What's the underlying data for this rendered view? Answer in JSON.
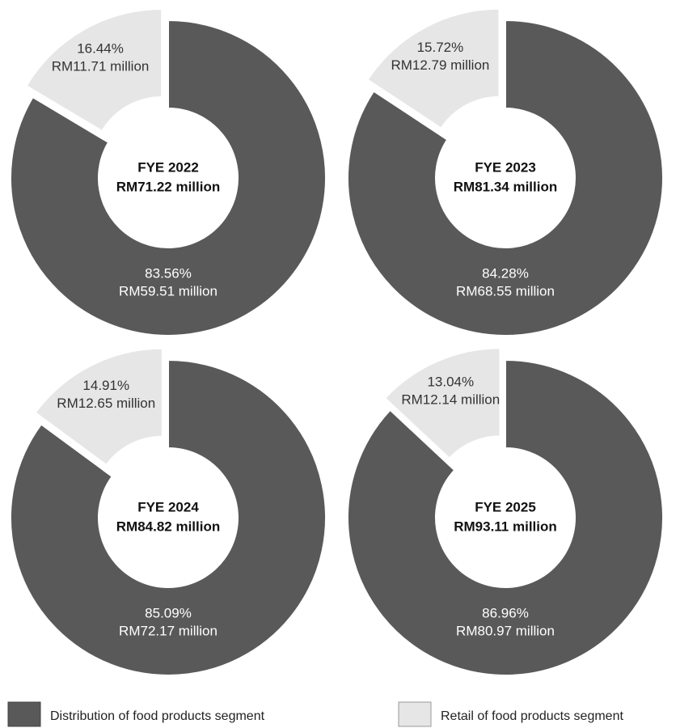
{
  "chart_data": [
    {
      "type": "pie",
      "title": "FYE 2022",
      "subtitle": "RM71.22 million",
      "categories": [
        "Distribution of food products segment",
        "Retail of food products segment"
      ],
      "values": [
        83.56,
        16.44
      ],
      "value_labels": [
        "83.56%",
        "16.44%"
      ],
      "amount_labels": [
        "RM59.51 million",
        "RM11.71 million"
      ],
      "colors": [
        "#595959",
        "#e6e6e6"
      ]
    },
    {
      "type": "pie",
      "title": "FYE 2023",
      "subtitle": "RM81.34 million",
      "categories": [
        "Distribution of food products segment",
        "Retail of food products segment"
      ],
      "values": [
        84.28,
        15.72
      ],
      "value_labels": [
        "84.28%",
        "15.72%"
      ],
      "amount_labels": [
        "RM68.55 million",
        "RM12.79 million"
      ],
      "colors": [
        "#595959",
        "#e6e6e6"
      ]
    },
    {
      "type": "pie",
      "title": "FYE 2024",
      "subtitle": "RM84.82 million",
      "categories": [
        "Distribution of food products segment",
        "Retail of food products segment"
      ],
      "values": [
        85.09,
        14.91
      ],
      "value_labels": [
        "85.09%",
        "14.91%"
      ],
      "amount_labels": [
        "RM72.17 million",
        "RM12.65 million"
      ],
      "colors": [
        "#595959",
        "#e6e6e6"
      ]
    },
    {
      "type": "pie",
      "title": "FYE 2025",
      "subtitle": "RM93.11 million",
      "categories": [
        "Distribution of food products segment",
        "Retail of food products segment"
      ],
      "values": [
        86.96,
        13.04
      ],
      "value_labels": [
        "86.96%",
        "13.04%"
      ],
      "amount_labels": [
        "RM80.97 million",
        "RM12.14 million"
      ],
      "colors": [
        "#595959",
        "#e6e6e6"
      ]
    }
  ]
}
